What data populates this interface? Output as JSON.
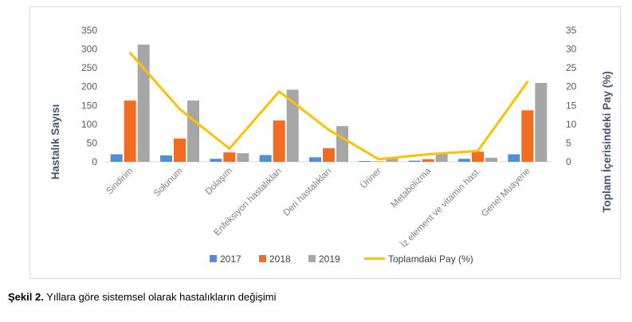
{
  "chart_data": {
    "type": "bar",
    "categories": [
      "Sindirim",
      "Solunum",
      "Dolaşım",
      "Enfeksiyon hastalıkları",
      "Deri hastalıkları",
      "Üriner",
      "Metabolizma",
      "İz element ve vitamin hast.",
      "Genel Muayene"
    ],
    "series": [
      {
        "name": "2017",
        "type": "bar",
        "axis": "left",
        "color": "#4f8fd5",
        "values": [
          20,
          17,
          8,
          18,
          12,
          2,
          3,
          8,
          20
        ]
      },
      {
        "name": "2018",
        "type": "bar",
        "axis": "left",
        "color": "#f26d21",
        "values": [
          163,
          62,
          25,
          110,
          36,
          1,
          7,
          27,
          137
        ]
      },
      {
        "name": "2019",
        "type": "bar",
        "axis": "left",
        "color": "#a6a6a6",
        "values": [
          312,
          163,
          23,
          192,
          95,
          9,
          24,
          11,
          210
        ]
      },
      {
        "name": "Toplamdaki Pay (%)",
        "type": "line",
        "axis": "right",
        "color": "#ffc000",
        "values": [
          29,
          14,
          3.5,
          18.7,
          8.5,
          0.7,
          2,
          2.9,
          21.3
        ]
      }
    ],
    "ylabel": "Hastalık Sayısı",
    "y2label": "Toplam İçerisindeki Pay (%)",
    "ylim": [
      0,
      350
    ],
    "y2lim": [
      0,
      35
    ],
    "yticks": [
      "0",
      "50",
      "100",
      "150",
      "200",
      "250",
      "300",
      "350"
    ],
    "y2ticks": [
      "0",
      "5",
      "10",
      "15",
      "20",
      "25",
      "30",
      "35"
    ],
    "grid": false,
    "legend_position": "bottom"
  },
  "caption": {
    "label": "Şekil 2.",
    "text": " Yıllara göre sistemsel olarak hastalıkların değişimi"
  }
}
